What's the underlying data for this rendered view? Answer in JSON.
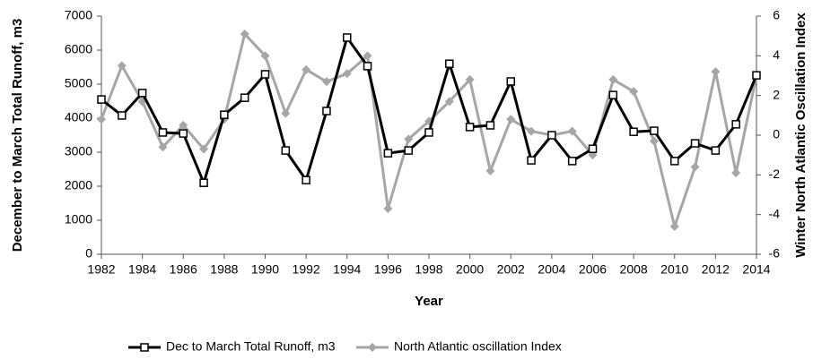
{
  "chart_data": {
    "type": "line",
    "x_label": "Year",
    "y_label": "December to March Total Runoff, m3",
    "y2_label": "Winter North Atlantic Oscillation Index",
    "x": [
      1982,
      1983,
      1984,
      1985,
      1986,
      1987,
      1988,
      1989,
      1990,
      1991,
      1992,
      1993,
      1994,
      1995,
      1996,
      1997,
      1998,
      1999,
      2000,
      2001,
      2002,
      2003,
      2004,
      2005,
      2006,
      2007,
      2008,
      2009,
      2010,
      2011,
      2012,
      2013,
      2014
    ],
    "xlim": [
      1982,
      2014
    ],
    "xticks": [
      1982,
      1984,
      1986,
      1988,
      1990,
      1992,
      1994,
      1996,
      1998,
      2000,
      2002,
      2004,
      2006,
      2008,
      2010,
      2012,
      2014
    ],
    "ylim": [
      0,
      7000
    ],
    "yticks": [
      0,
      1000,
      2000,
      3000,
      4000,
      5000,
      6000,
      7000
    ],
    "y2lim": [
      -6,
      6
    ],
    "y2ticks": [
      -6,
      -4,
      -2,
      0,
      2,
      4,
      6
    ],
    "grid": false,
    "legend": "bottom",
    "series": [
      {
        "name": "Dec to March Total Runoff, m3",
        "color": "#000000",
        "marker": "square",
        "values": [
          4550,
          4080,
          4740,
          3580,
          3550,
          2100,
          4100,
          4600,
          5290,
          3050,
          2180,
          4210,
          6370,
          5530,
          2970,
          3050,
          3580,
          5600,
          3740,
          3790,
          5080,
          2760,
          3500,
          2740,
          3100,
          4680,
          3600,
          3630,
          2740,
          3260,
          3050,
          3820,
          5260
        ]
      },
      {
        "name": "North Atlantic oscillation Index",
        "color": "#a6a6a6",
        "marker": "diamond",
        "axis": "y2",
        "values": [
          0.8,
          3.5,
          1.7,
          -0.6,
          0.5,
          -0.7,
          0.8,
          5.1,
          4.0,
          1.1,
          3.3,
          2.7,
          3.1,
          4.0,
          -3.7,
          -0.2,
          0.7,
          1.7,
          2.8,
          -1.8,
          0.8,
          0.2,
          0,
          0.2,
          -1.0,
          2.8,
          2.2,
          -0.3,
          -4.6,
          -1.6,
          3.2,
          -1.9,
          3.0
        ]
      }
    ]
  }
}
